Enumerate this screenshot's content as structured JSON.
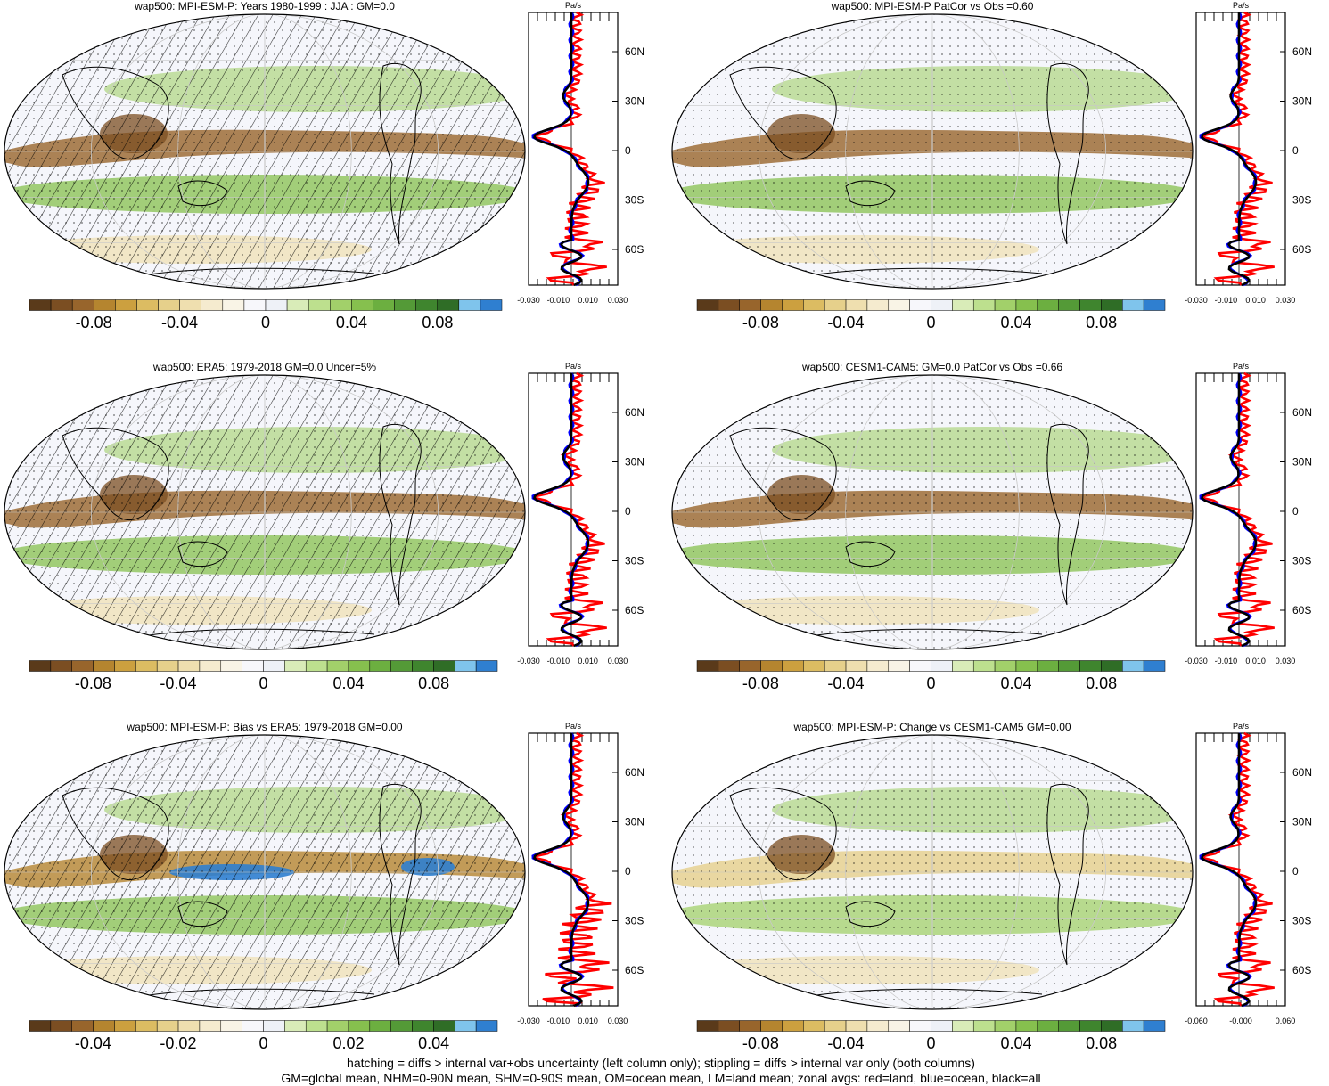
{
  "panels": [
    {
      "title": "wap500: MPI-ESM-P: Years 1980-1999 : JJA : GM=0.0",
      "hatching": true,
      "colorbar_labels": [
        "-0.08",
        "-0.04",
        "0",
        "0.04",
        "0.08"
      ],
      "zonal": {
        "units": "Pa/s",
        "lat_labels": [
          "60N",
          "30N",
          "0",
          "30S",
          "60S"
        ],
        "x_labels": [
          "-0.030",
          "-0.010",
          "0.010",
          "0.030"
        ]
      }
    },
    {
      "title": "wap500: MPI-ESM-P PatCor vs Obs =0.60",
      "hatching": false,
      "colorbar_labels": [
        "-0.08",
        "-0.04",
        "0",
        "0.04",
        "0.08"
      ],
      "zonal": {
        "units": "Pa/s",
        "lat_labels": [
          "60N",
          "30N",
          "0",
          "30S",
          "60S"
        ],
        "x_labels": [
          "-0.030",
          "-0.010",
          "0.010",
          "0.030"
        ]
      }
    },
    {
      "title": "wap500: ERA5: 1979-2018 GM=0.0 Uncer=5%",
      "hatching": true,
      "colorbar_labels": [
        "-0.08",
        "-0.04",
        "0",
        "0.04",
        "0.08"
      ],
      "zonal": {
        "units": "Pa/s",
        "lat_labels": [
          "60N",
          "30N",
          "0",
          "30S",
          "60S"
        ],
        "x_labels": [
          "-0.030",
          "-0.010",
          "0.010",
          "0.030"
        ]
      }
    },
    {
      "title": "wap500: CESM1-CAM5: GM=0.0 PatCor vs Obs =0.66",
      "hatching": false,
      "colorbar_labels": [
        "-0.08",
        "-0.04",
        "0",
        "0.04",
        "0.08"
      ],
      "zonal": {
        "units": "Pa/s",
        "lat_labels": [
          "60N",
          "30N",
          "0",
          "30S",
          "60S"
        ],
        "x_labels": [
          "-0.030",
          "-0.010",
          "0.010",
          "0.030"
        ]
      }
    },
    {
      "title": "wap500: MPI-ESM-P: Bias vs ERA5: 1979-2018 GM=0.00",
      "hatching": true,
      "colorbar_labels": [
        "-0.04",
        "-0.02",
        "0",
        "0.02",
        "0.04"
      ],
      "zonal": {
        "units": "Pa/s",
        "lat_labels": [
          "60N",
          "30N",
          "0",
          "30S",
          "60S"
        ],
        "x_labels": [
          "-0.030",
          "-0.010",
          "0.010",
          "0.030"
        ]
      }
    },
    {
      "title": "wap500: MPI-ESM-P: Change vs CESM1-CAM5 GM=0.00",
      "hatching": false,
      "colorbar_labels": [
        "-0.08",
        "-0.04",
        "0",
        "0.04",
        "0.08"
      ],
      "zonal": {
        "units": "Pa/s",
        "lat_labels": [
          "60N",
          "30N",
          "0",
          "30S",
          "60S"
        ],
        "x_labels": [
          "-0.060",
          "-0.000",
          "0.060"
        ]
      }
    }
  ],
  "colorbar_colors": [
    "#5a3a1a",
    "#7b4e22",
    "#98652c",
    "#b5852f",
    "#cca03f",
    "#dcbc62",
    "#e6d08b",
    "#efdfaf",
    "#f5ebcf",
    "#f9f4e6",
    "#f7f7fb",
    "#eef1f7",
    "#d9ecb8",
    "#bde08e",
    "#a2d06a",
    "#86c04e",
    "#6caf40",
    "#549a37",
    "#3f852e",
    "#2f6d26",
    "#7fc4ec",
    "#2f7fd0"
  ],
  "legend_colors": {
    "land": "#ff0000",
    "ocean": "#0000ff",
    "all": "#000000"
  },
  "footnote": [
    "hatching = diffs > internal var+obs uncertainty (left column only); stippling = diffs > internal var only (both columns)",
    "GM=global mean, NHM=0-90N mean, SHM=0-90S mean, OM=ocean mean, LM=land mean; zonal avgs: red=land, blue=ocean, black=all"
  ]
}
